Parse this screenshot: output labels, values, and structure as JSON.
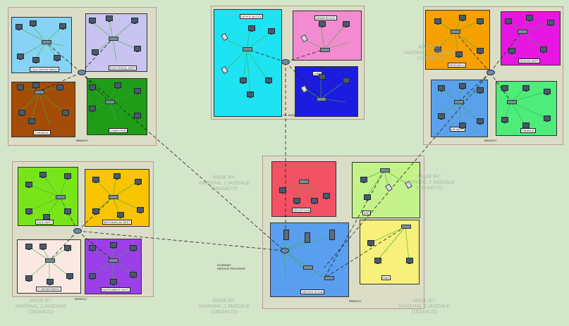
{
  "watermarks": [
    {
      "id": "wm-top-right",
      "text": "MADE BY:\nHARSHAL J JAGDALE\n(19SA4172)"
    },
    {
      "id": "wm-mid-center",
      "text": "MADE BY:\nHARSHAL J JAGDALE\n(19SA4172)"
    },
    {
      "id": "wm-mid-right",
      "text": "MADE BY:\nHARSHAL J JAGDALE\n(19SA4172)"
    },
    {
      "id": "wm-bottom-left",
      "text": "MADE BY:\nHARSHAL J JAGDALE\n(19SA4172)"
    },
    {
      "id": "wm-bottom-center",
      "text": "MADE BY:\nHARSHAL J JAGDALE\n(19SA4172)"
    },
    {
      "id": "wm-bottom-right",
      "text": "MADE BY:\nHARSHAL J JAGDALE\n(19SA4172)"
    }
  ],
  "campuses": {
    "top_left": "BRANCH",
    "top_center": "INSTITUTE OF ENGINEERING (CAMPUS)",
    "top_right": "BRANCH",
    "bottom_left": "BRANCH",
    "bottom_center": "BRANCH"
  },
  "zones": [
    {
      "id": "civil-dept",
      "label": "CIVIL DEPARTMENT",
      "color": "#87d3f5"
    },
    {
      "id": "electrical-dept",
      "label": "ELECTRICAL DEPT",
      "color": "#c9c3f1"
    },
    {
      "id": "chemical-dept",
      "label": "CHEMICAL",
      "color": "#a44d08"
    },
    {
      "id": "computer-dept",
      "label": "COMPUTER",
      "color": "#1f9c18"
    },
    {
      "id": "office-block",
      "label": "OFFICE BLOCK",
      "color": "#1ee3f3"
    },
    {
      "id": "admin-block",
      "label": "ADMIN BLOCK",
      "color": "#f28bd0"
    },
    {
      "id": "lab-block",
      "label": "LABS",
      "color": "#1c1ce0"
    },
    {
      "id": "research-dept",
      "label": "RESEARCH",
      "color": "#f7a100"
    },
    {
      "id": "design-dept",
      "label": "DESIGN DEPT",
      "color": "#e816e3"
    },
    {
      "id": "hr-dept",
      "label": "HR DEPT",
      "color": "#5aa0ea"
    },
    {
      "id": "finance-dept",
      "label": "FINANCE",
      "color": "#4eec7a"
    },
    {
      "id": "civil-dept-2",
      "label": "CIVIL DEPT",
      "color": "#78e51b"
    },
    {
      "id": "mechanical-dept",
      "label": "MECHANICAL DEPT",
      "color": "#fbc400"
    },
    {
      "id": "it-dept",
      "label": "IT DEPARTMENT",
      "color": "#fbe8e2"
    },
    {
      "id": "instrument-dept",
      "label": "INSTRUMENT DEPT",
      "color": "#9b40e8"
    },
    {
      "id": "server-room",
      "label": "SERVER ROOM",
      "color": "#5a9ef0"
    },
    {
      "id": "reception-block",
      "label": "RECEPTION",
      "color": "#f25264"
    },
    {
      "id": "wireless-zone",
      "label": "WIFI",
      "color": "#c4f28a"
    },
    {
      "id": "dmz-zone",
      "label": "DMZ",
      "color": "#f7f07a"
    }
  ],
  "server_room_caption": "INTERNET\nSERVICE PROVIDER"
}
